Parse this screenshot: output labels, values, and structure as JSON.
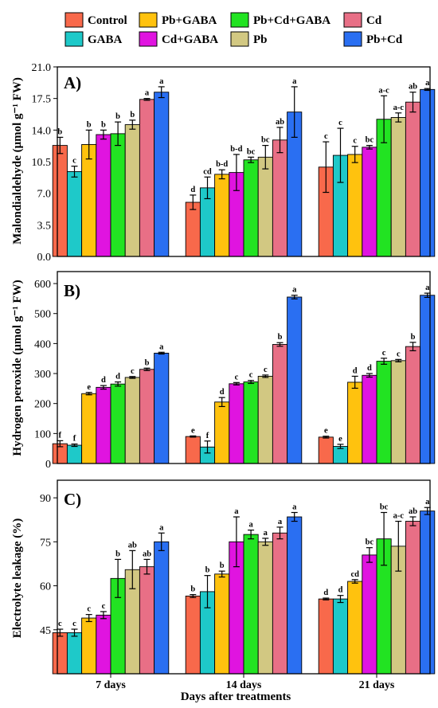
{
  "legend": {
    "items": [
      {
        "name": "Control",
        "color": "#F8694B"
      },
      {
        "name": "Pb+GABA",
        "color": "#FFC20E"
      },
      {
        "name": "Pb+Cd+GABA",
        "color": "#22E322"
      },
      {
        "name": "Cd",
        "color": "#E86F86"
      },
      {
        "name": "GABA",
        "color": "#1EC9C9"
      },
      {
        "name": "Cd+GABA",
        "color": "#E014E0"
      },
      {
        "name": "Pb",
        "color": "#D2C882"
      },
      {
        "name": "Pb+Cd",
        "color": "#2A6FF2"
      }
    ]
  },
  "chart_data": {
    "type": "bar",
    "categories": [
      "7 days",
      "14 days",
      "21 days"
    ],
    "xlabel": "Days after treatments",
    "series_order": [
      "Control",
      "GABA",
      "Pb+GABA",
      "Cd+GABA",
      "Pb+Cd+GABA",
      "Pb",
      "Cd",
      "Pb+Cd"
    ],
    "series_colors": {
      "Control": "#F8694B",
      "GABA": "#1EC9C9",
      "Pb+GABA": "#FFC20E",
      "Cd+GABA": "#E014E0",
      "Pb+Cd+GABA": "#22E322",
      "Pb": "#D2C882",
      "Cd": "#E86F86",
      "Pb+Cd": "#2A6FF2"
    },
    "panels": [
      {
        "label": "A)",
        "ylabel": "Malondialdehyde (μmol g⁻¹ FW)",
        "ylim": [
          0,
          21
        ],
        "yticks": [
          "0.0",
          "3.5",
          "7.0",
          "10.5",
          "14.0",
          "17.5",
          "21.0"
        ],
        "groups": [
          {
            "values": [
              12.3,
              9.4,
              12.4,
              13.5,
              13.6,
              14.6,
              17.4,
              18.2
            ],
            "errors": [
              0.9,
              0.6,
              1.6,
              0.5,
              1.3,
              0.5,
              0.1,
              0.6
            ],
            "letters": [
              "b",
              "c",
              "b",
              "b",
              "b",
              "b",
              "a",
              "a"
            ]
          },
          {
            "values": [
              6.0,
              7.6,
              9.1,
              9.3,
              10.7,
              11.0,
              12.9,
              16.0
            ],
            "errors": [
              0.8,
              1.2,
              0.5,
              2.0,
              0.3,
              1.3,
              1.4,
              2.8
            ],
            "letters": [
              "d",
              "cd",
              "b-d",
              "b-d",
              "bc",
              "bc",
              "ab",
              "a"
            ]
          },
          {
            "values": [
              9.9,
              11.2,
              11.3,
              12.1,
              15.2,
              15.4,
              17.1,
              18.5
            ],
            "errors": [
              2.8,
              3.0,
              0.9,
              0.2,
              2.6,
              0.5,
              1.1,
              0.1
            ],
            "letters": [
              "c",
              "c",
              "c",
              "bc",
              "a-c",
              "a-c",
              "ab",
              "a"
            ]
          }
        ]
      },
      {
        "label": "B)",
        "ylabel": "Hydrogen peroxide (μmol g⁻¹ FW)",
        "ylim": [
          0,
          640
        ],
        "yticks": [
          "0",
          "100",
          "200",
          "300",
          "400",
          "500",
          "600"
        ],
        "groups": [
          {
            "values": [
              66,
              61,
              233,
              254,
              265,
              287,
              314,
              368
            ],
            "errors": [
              10,
              4,
              4,
              6,
              7,
              3,
              4,
              3
            ],
            "letters": [
              "f",
              "f",
              "e",
              "d",
              "d",
              "c",
              "b",
              "a"
            ]
          },
          {
            "values": [
              90,
              55,
              205,
              266,
              272,
              291,
              397,
              555
            ],
            "errors": [
              2,
              20,
              15,
              4,
              5,
              4,
              6,
              6
            ],
            "letters": [
              "e",
              "f",
              "d",
              "c",
              "c",
              "c",
              "b",
              "a"
            ]
          },
          {
            "values": [
              88,
              57,
              271,
              294,
              341,
              343,
              390,
              561
            ],
            "errors": [
              3,
              7,
              20,
              6,
              10,
              4,
              14,
              7
            ],
            "letters": [
              "e",
              "e",
              "d",
              "d",
              "c",
              "c",
              "b",
              "a"
            ]
          }
        ]
      },
      {
        "label": "C)",
        "ylabel": "Electrolyte leakage (%)",
        "ylim": [
          30,
          96
        ],
        "yticks": [
          "45",
          "60",
          "75",
          "90"
        ],
        "groups": [
          {
            "values": [
              44.0,
              44.0,
              49.0,
              50.0,
              62.5,
              65.5,
              66.5,
              75.0
            ],
            "errors": [
              1.2,
              1.2,
              1.2,
              1.2,
              6.5,
              6.5,
              2.5,
              3.0
            ],
            "letters": [
              "c",
              "c",
              "c",
              "c",
              "b",
              "ab",
              "ab",
              "a"
            ]
          },
          {
            "values": [
              56.5,
              58.0,
              64.0,
              75.0,
              77.5,
              75.0,
              78.0,
              83.5
            ],
            "errors": [
              0.5,
              5.5,
              1.0,
              8.5,
              1.5,
              1.2,
              2.0,
              1.5
            ],
            "letters": [
              "b",
              "b",
              "b",
              "a",
              "a",
              "a",
              "a",
              "a"
            ]
          },
          {
            "values": [
              55.5,
              55.5,
              61.5,
              70.5,
              76.0,
              73.5,
              82.0,
              85.5
            ],
            "errors": [
              0.3,
              1.2,
              0.6,
              2.5,
              9.0,
              8.5,
              1.5,
              1.2
            ],
            "letters": [
              "d",
              "d",
              "cd",
              "bc",
              "bc",
              "a-c",
              "ab",
              "a"
            ]
          }
        ]
      }
    ]
  }
}
